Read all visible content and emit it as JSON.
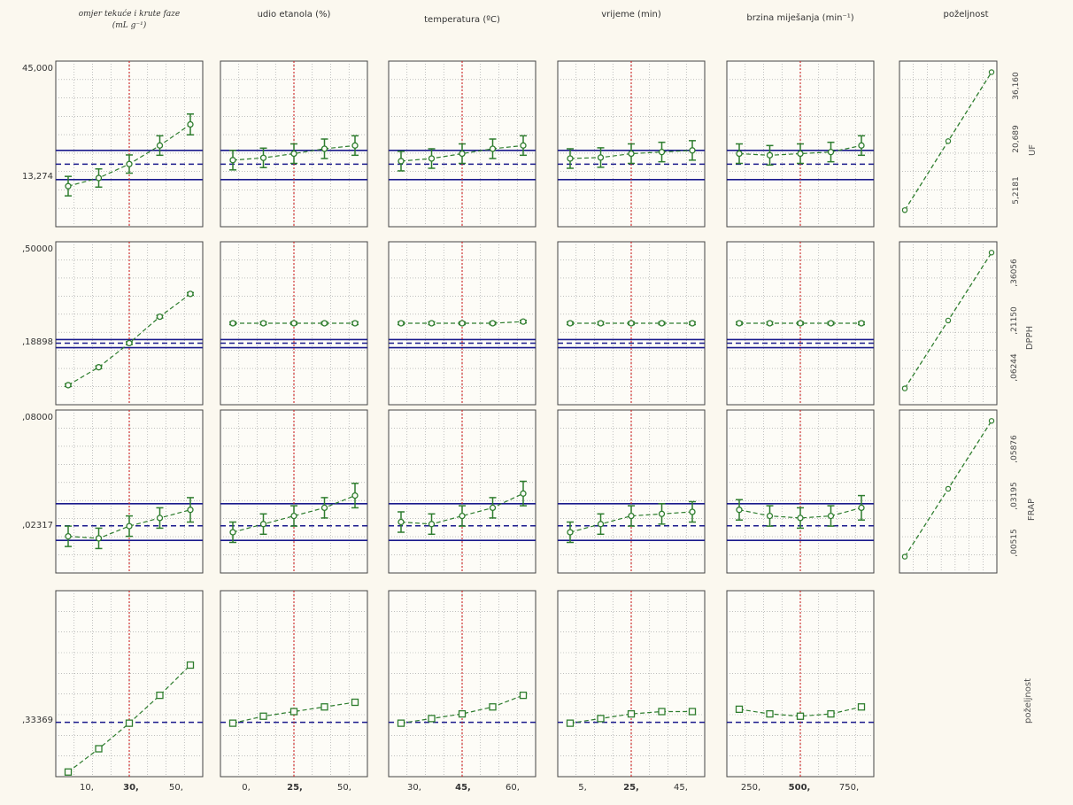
{
  "columns": [
    {
      "label_line1": "omjer tekuće i krute faze",
      "label_line2": "(mL g⁻¹)",
      "serif": true
    },
    {
      "label_line1": "udio etanola (%)",
      "label_line2": ""
    },
    {
      "label_line1": "temperatura (ºC)",
      "label_line2": ""
    },
    {
      "label_line1": "vrijeme (min)",
      "label_line2": ""
    },
    {
      "label_line1": "brzina miješanja (min⁻¹)",
      "label_line2": ""
    },
    {
      "label_line1": "poželjnost",
      "label_line2": ""
    }
  ],
  "rows": [
    {
      "label": "UF",
      "ytop": "45,000",
      "ymid": "13,274",
      "rticks": [
        "5,2181",
        "20,689",
        "36,160"
      ]
    },
    {
      "label": "DPPH",
      "ytop": ",50000",
      "ymid": ",18898",
      "rticks": [
        ",06244",
        ",21150",
        ",36056"
      ]
    },
    {
      "label": "FRAP",
      "ytop": ",08000",
      "ymid": ",02317",
      "rticks": [
        ",00515",
        ",03195",
        ",05876"
      ]
    },
    {
      "label": "poželjnost",
      "ytop": "",
      "ymid": ",33369",
      "rticks": []
    }
  ],
  "x_ticks": [
    [
      {
        "t": "10,",
        "b": false
      },
      {
        "t": "30,",
        "b": true
      },
      {
        "t": "50,",
        "b": false
      }
    ],
    [
      {
        "t": "0,",
        "b": false
      },
      {
        "t": "25,",
        "b": true
      },
      {
        "t": "50,",
        "b": false
      }
    ],
    [
      {
        "t": "30,",
        "b": false
      },
      {
        "t": "45,",
        "b": true
      },
      {
        "t": "60,",
        "b": false
      }
    ],
    [
      {
        "t": "5,",
        "b": false
      },
      {
        "t": "25,",
        "b": true
      },
      {
        "t": "45,",
        "b": false
      }
    ],
    [
      {
        "t": "250,",
        "b": false
      },
      {
        "t": "500,",
        "b": true
      },
      {
        "t": "750,",
        "b": false
      }
    ]
  ],
  "colors": {
    "marker": "#2e7d2e",
    "conf": "#1a1a8c",
    "mid": "#cc2222",
    "grid": "#9a9a9a",
    "bg": "#fbf8ef"
  },
  "chart_data": {
    "type": "line",
    "title": "",
    "x_factors": [
      {
        "name": "omjer tekuće i krute faze (mL g⁻¹)",
        "levels": [
          10,
          20,
          30,
          40,
          50
        ],
        "optimum": 30
      },
      {
        "name": "udio etanola (%)",
        "levels": [
          0,
          12.5,
          25,
          37.5,
          50
        ],
        "optimum": 25
      },
      {
        "name": "temperatura (ºC)",
        "levels": [
          30,
          37.5,
          45,
          52.5,
          60
        ],
        "optimum": 45
      },
      {
        "name": "vrijeme (min)",
        "levels": [
          5,
          15,
          25,
          35,
          45
        ],
        "optimum": 25
      },
      {
        "name": "brzina miješanja (min⁻¹)",
        "levels": [
          250,
          375,
          500,
          625,
          750
        ],
        "optimum": 500
      }
    ],
    "responses": [
      {
        "name": "UF",
        "ylim": [
          -6,
          45
        ],
        "current": 13.274,
        "ci": [
          8.5,
          17.5
        ],
        "series": [
          [
            6.5,
            9.0,
            13.3,
            19.0,
            25.5
          ],
          [
            14.5,
            15.2,
            16.5,
            18.0,
            19.0
          ],
          [
            14.2,
            15.0,
            16.5,
            18.0,
            19.0
          ],
          [
            15.0,
            15.3,
            16.5,
            17.0,
            17.5
          ],
          [
            16.5,
            16.0,
            16.5,
            17.0,
            19.0
          ]
        ],
        "err": [
          [
            3.0,
            2.8,
            2.8,
            3.0,
            3.2
          ],
          [
            3.0,
            3.0,
            3.0,
            3.0,
            3.0
          ],
          [
            3.0,
            3.0,
            3.0,
            3.0,
            3.0
          ],
          [
            3.0,
            3.0,
            3.0,
            3.0,
            3.0
          ],
          [
            3.0,
            3.0,
            3.0,
            3.0,
            3.0
          ]
        ]
      },
      {
        "name": "DPPH",
        "ylim": [
          0,
          0.5
        ],
        "current": 0.18898,
        "ci": [
          0.175,
          0.2
        ],
        "series": [
          [
            0.06,
            0.115,
            0.189,
            0.27,
            0.34
          ],
          [
            0.25,
            0.25,
            0.25,
            0.25,
            0.25
          ],
          [
            0.25,
            0.25,
            0.25,
            0.25,
            0.255
          ],
          [
            0.25,
            0.25,
            0.25,
            0.25,
            0.25
          ],
          [
            0.25,
            0.25,
            0.25,
            0.25,
            0.25
          ]
        ],
        "err": [
          [
            0.004,
            0.004,
            0.004,
            0.004,
            0.004
          ],
          [
            0.004,
            0.004,
            0.004,
            0.004,
            0.004
          ],
          [
            0.004,
            0.004,
            0.004,
            0.004,
            0.004
          ],
          [
            0.004,
            0.004,
            0.004,
            0.004,
            0.004
          ],
          [
            0.004,
            0.004,
            0.004,
            0.004,
            0.004
          ]
        ]
      },
      {
        "name": "FRAP",
        "ylim": [
          0,
          0.08
        ],
        "current": 0.02317,
        "ci": [
          0.016,
          0.034
        ],
        "series": [
          [
            0.018,
            0.017,
            0.023,
            0.027,
            0.031
          ],
          [
            0.02,
            0.024,
            0.028,
            0.032,
            0.038
          ],
          [
            0.025,
            0.024,
            0.028,
            0.032,
            0.039
          ],
          [
            0.02,
            0.024,
            0.028,
            0.029,
            0.03
          ],
          [
            0.031,
            0.028,
            0.027,
            0.028,
            0.032
          ]
        ],
        "err": [
          [
            0.005,
            0.005,
            0.005,
            0.005,
            0.006
          ],
          [
            0.005,
            0.005,
            0.005,
            0.005,
            0.006
          ],
          [
            0.005,
            0.005,
            0.005,
            0.005,
            0.006
          ],
          [
            0.005,
            0.005,
            0.005,
            0.005,
            0.005
          ],
          [
            0.005,
            0.005,
            0.005,
            0.005,
            0.006
          ]
        ]
      },
      {
        "name": "poželjnost",
        "ylim": [
          0.1,
          0.9
        ],
        "current": 0.33369,
        "ci": null,
        "series": [
          [
            0.12,
            0.22,
            0.33,
            0.45,
            0.58
          ],
          [
            0.33,
            0.36,
            0.38,
            0.4,
            0.42
          ],
          [
            0.33,
            0.35,
            0.37,
            0.4,
            0.45
          ],
          [
            0.33,
            0.35,
            0.37,
            0.38,
            0.38
          ],
          [
            0.39,
            0.37,
            0.36,
            0.37,
            0.4
          ]
        ],
        "err": null
      }
    ],
    "desirability": [
      {
        "name": "UF",
        "points": [
          [
            0.0,
            5.2181
          ],
          [
            0.5,
            20.689
          ],
          [
            1.0,
            36.16
          ]
        ]
      },
      {
        "name": "DPPH",
        "points": [
          [
            0.0,
            0.06244
          ],
          [
            0.5,
            0.2115
          ],
          [
            1.0,
            0.36056
          ]
        ]
      },
      {
        "name": "FRAP",
        "points": [
          [
            0.0,
            0.00515
          ],
          [
            0.5,
            0.03195
          ],
          [
            1.0,
            0.05876
          ]
        ]
      }
    ]
  }
}
